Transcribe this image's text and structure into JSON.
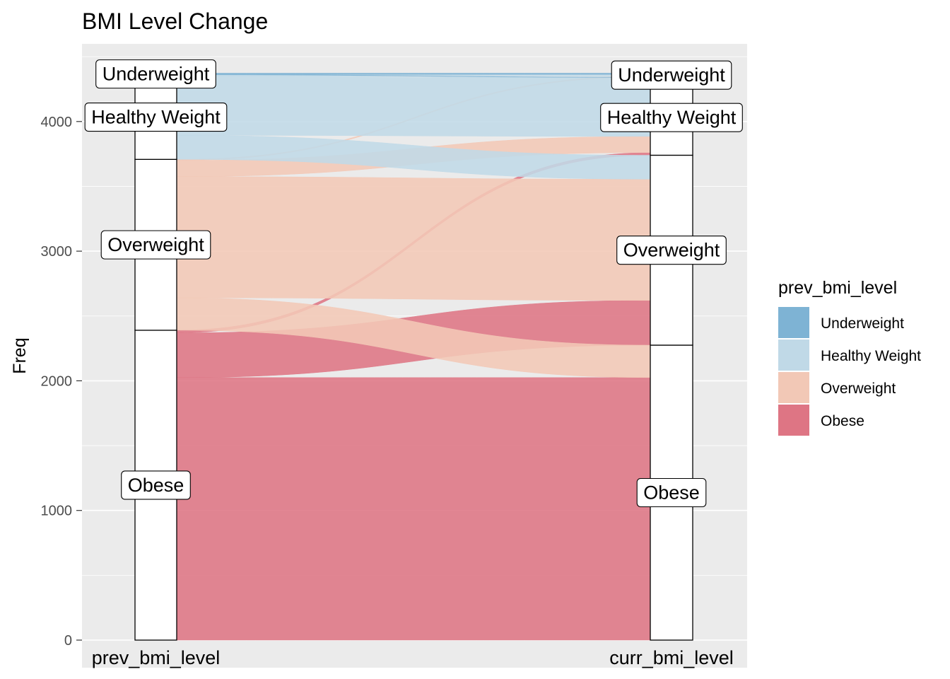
{
  "chart_data": {
    "type": "alluvial",
    "title": "BMI Level Change",
    "ylabel": "Freq",
    "xlabel": "",
    "axes": [
      "prev_bmi_level",
      "curr_bmi_level"
    ],
    "ylim": [
      0,
      4500
    ],
    "yticks": [
      0,
      1000,
      2000,
      3000,
      4000
    ],
    "grid": true,
    "legend": {
      "title": "prev_bmi_level",
      "position": "right",
      "items": [
        "Underweight",
        "Healthy Weight",
        "Overweight",
        "Obese"
      ]
    },
    "strata_order_top_to_bottom": [
      "Underweight",
      "Healthy Weight",
      "Overweight",
      "Obese"
    ],
    "colors": {
      "Underweight": "#7EB3D4",
      "Healthy Weight": "#C0D9E7",
      "Overweight": "#F2C8B6",
      "Obese": "#DE7584",
      "stratum_fill": "#ffffff",
      "panel_background": "#EBEBEB",
      "grid": "#ffffff"
    },
    "flows": [
      {
        "from": "Obese",
        "to": "Obese",
        "value": 2025
      },
      {
        "from": "Obese",
        "to": "Overweight",
        "value": 345
      },
      {
        "from": "Obese",
        "to": "Healthy Weight",
        "value": 20
      },
      {
        "from": "Overweight",
        "to": "Obese",
        "value": 250
      },
      {
        "from": "Overweight",
        "to": "Overweight",
        "value": 935
      },
      {
        "from": "Overweight",
        "to": "Healthy Weight",
        "value": 125
      },
      {
        "from": "Overweight",
        "to": "Underweight",
        "value": 8
      },
      {
        "from": "Healthy Weight",
        "to": "Overweight",
        "value": 185
      },
      {
        "from": "Healthy Weight",
        "to": "Healthy Weight",
        "value": 455
      },
      {
        "from": "Healthy Weight",
        "to": "Underweight",
        "value": 12
      },
      {
        "from": "Underweight",
        "to": "Healthy Weight",
        "value": 3
      },
      {
        "from": "Underweight",
        "to": "Underweight",
        "value": 10
      }
    ]
  }
}
